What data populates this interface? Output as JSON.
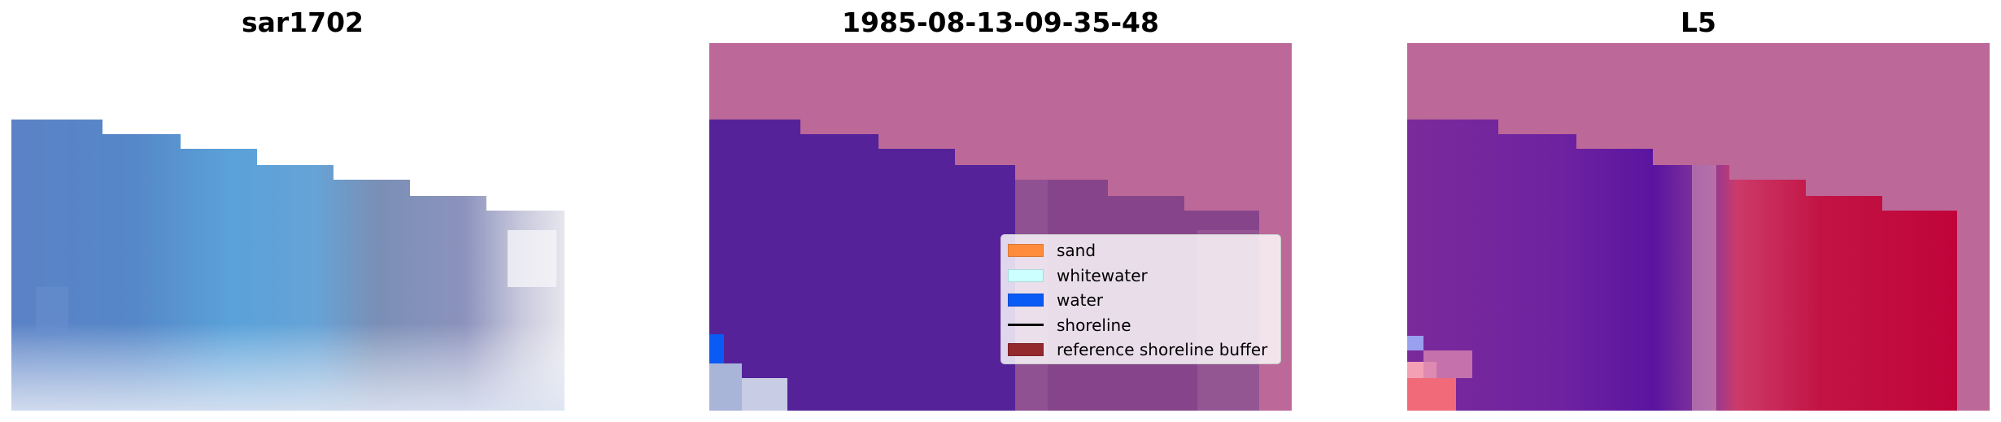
{
  "panels": [
    {
      "title": "sar1702"
    },
    {
      "title": "1985-08-13-09-35-48"
    },
    {
      "title": "L5"
    }
  ],
  "legend": {
    "items": [
      {
        "label": "sand",
        "color": "#ff8c3c",
        "kind": "patch"
      },
      {
        "label": "whitewater",
        "color": "#ccffff",
        "kind": "patch"
      },
      {
        "label": "water",
        "color": "#0a5af5",
        "kind": "patch"
      },
      {
        "label": "shoreline",
        "color": "#000000",
        "kind": "line"
      },
      {
        "label": "reference shoreline buffer",
        "color": "#93282d",
        "kind": "patch"
      }
    ]
  },
  "colors": {
    "reference_buffer_overlay": "#bc6898",
    "water_overlay": "#552299",
    "probability_high": "#c0043a"
  }
}
